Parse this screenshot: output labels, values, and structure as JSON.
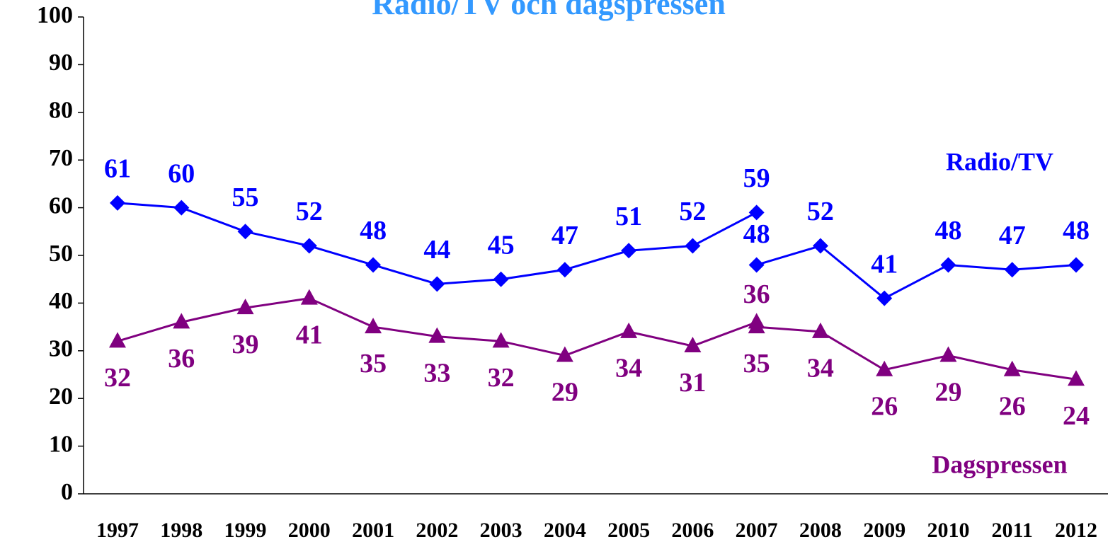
{
  "chart_data": {
    "type": "line",
    "title": "Radio/TV och dagspressen",
    "categories": [
      "1997",
      "1998",
      "1999",
      "2000",
      "2001",
      "2002",
      "2003",
      "2004",
      "2005",
      "2006",
      "2007",
      "2008",
      "2009",
      "2010",
      "2011",
      "2012"
    ],
    "series": [
      {
        "name": "Radio/TV",
        "color": "#0000ff",
        "marker": "diamond",
        "values": [
          61,
          60,
          55,
          52,
          48,
          44,
          45,
          47,
          51,
          52,
          59,
          null,
          null,
          null,
          null,
          null
        ],
        "values_2": [
          null,
          null,
          null,
          null,
          null,
          null,
          null,
          null,
          null,
          null,
          48,
          52,
          41,
          48,
          47,
          48
        ]
      },
      {
        "name": "Dagspressen",
        "color": "#800080",
        "marker": "triangle",
        "values": [
          32,
          36,
          39,
          41,
          35,
          33,
          32,
          29,
          34,
          31,
          36,
          null,
          null,
          null,
          null,
          null
        ],
        "values_2": [
          null,
          null,
          null,
          null,
          null,
          null,
          null,
          null,
          null,
          null,
          35,
          34,
          26,
          29,
          26,
          24
        ]
      }
    ],
    "ylim": [
      0,
      100
    ],
    "yticks": [
      0,
      10,
      20,
      30,
      40,
      50,
      60,
      70,
      80,
      90,
      100
    ]
  }
}
